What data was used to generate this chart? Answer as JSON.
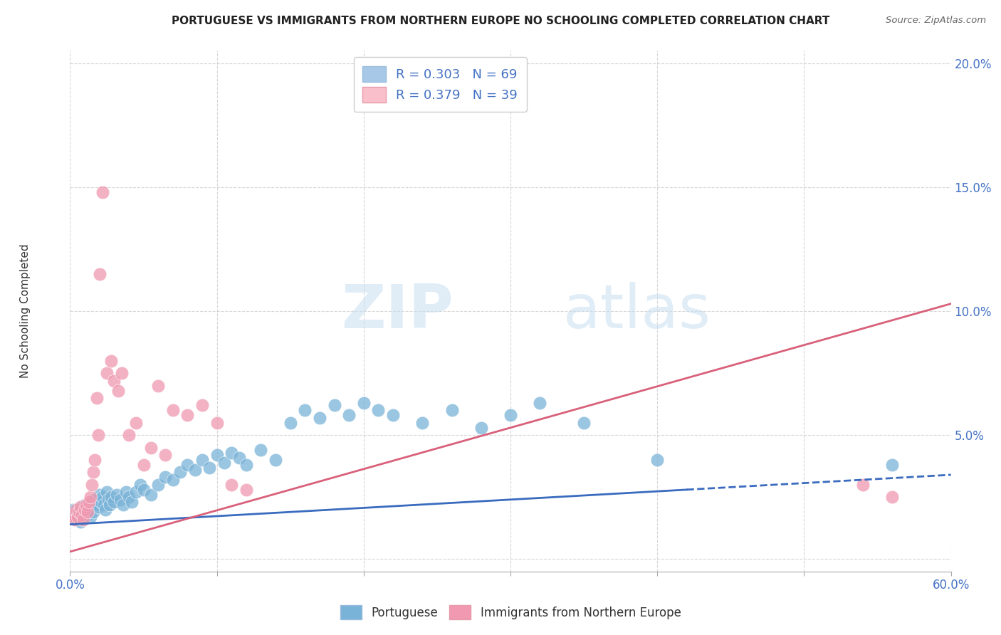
{
  "title": "PORTUGUESE VS IMMIGRANTS FROM NORTHERN EUROPE NO SCHOOLING COMPLETED CORRELATION CHART",
  "source": "Source: ZipAtlas.com",
  "ylabel": "No Schooling Completed",
  "xlim": [
    0.0,
    0.6
  ],
  "ylim": [
    -0.005,
    0.205
  ],
  "yticks": [
    0.0,
    0.05,
    0.1,
    0.15,
    0.2
  ],
  "ytick_labels": [
    "",
    "5.0%",
    "10.0%",
    "15.0%",
    "20.0%"
  ],
  "xtick_positions": [
    0.0,
    0.1,
    0.2,
    0.3,
    0.4,
    0.5,
    0.6
  ],
  "legend_entries": [
    {
      "label": "R = 0.303   N = 69",
      "color": "#a8c8e8"
    },
    {
      "label": "R = 0.379   N = 39",
      "color": "#f9c0cc"
    }
  ],
  "legend_bottom": [
    "Portuguese",
    "Immigrants from Northern Europe"
  ],
  "portuguese_color": "#7ab3d8",
  "immigrants_color": "#f099b0",
  "portuguese_line_color": "#3a6bbf",
  "immigrants_line_color": "#d9607a",
  "portuguese_line_solid_end": 0.42,
  "portuguese_line": [
    [
      0.0,
      0.014
    ],
    [
      0.6,
      0.034
    ]
  ],
  "immigrants_line": [
    [
      0.0,
      0.003
    ],
    [
      0.6,
      0.103
    ]
  ],
  "watermark_zip": "ZIP",
  "watermark_atlas": "atlas",
  "portuguese_scatter": [
    [
      0.002,
      0.02
    ],
    [
      0.003,
      0.018
    ],
    [
      0.004,
      0.016
    ],
    [
      0.005,
      0.019
    ],
    [
      0.006,
      0.017
    ],
    [
      0.007,
      0.015
    ],
    [
      0.008,
      0.021
    ],
    [
      0.009,
      0.019
    ],
    [
      0.01,
      0.022
    ],
    [
      0.011,
      0.02
    ],
    [
      0.012,
      0.018
    ],
    [
      0.013,
      0.021
    ],
    [
      0.014,
      0.017
    ],
    [
      0.015,
      0.023
    ],
    [
      0.016,
      0.019
    ],
    [
      0.017,
      0.024
    ],
    [
      0.018,
      0.022
    ],
    [
      0.019,
      0.021
    ],
    [
      0.02,
      0.026
    ],
    [
      0.021,
      0.023
    ],
    [
      0.022,
      0.025
    ],
    [
      0.023,
      0.022
    ],
    [
      0.024,
      0.02
    ],
    [
      0.025,
      0.027
    ],
    [
      0.026,
      0.024
    ],
    [
      0.027,
      0.022
    ],
    [
      0.028,
      0.025
    ],
    [
      0.03,
      0.023
    ],
    [
      0.032,
      0.026
    ],
    [
      0.034,
      0.024
    ],
    [
      0.036,
      0.022
    ],
    [
      0.038,
      0.027
    ],
    [
      0.04,
      0.025
    ],
    [
      0.042,
      0.023
    ],
    [
      0.045,
      0.027
    ],
    [
      0.048,
      0.03
    ],
    [
      0.05,
      0.028
    ],
    [
      0.055,
      0.026
    ],
    [
      0.06,
      0.03
    ],
    [
      0.065,
      0.033
    ],
    [
      0.07,
      0.032
    ],
    [
      0.075,
      0.035
    ],
    [
      0.08,
      0.038
    ],
    [
      0.085,
      0.036
    ],
    [
      0.09,
      0.04
    ],
    [
      0.095,
      0.037
    ],
    [
      0.1,
      0.042
    ],
    [
      0.105,
      0.039
    ],
    [
      0.11,
      0.043
    ],
    [
      0.115,
      0.041
    ],
    [
      0.12,
      0.038
    ],
    [
      0.13,
      0.044
    ],
    [
      0.14,
      0.04
    ],
    [
      0.15,
      0.055
    ],
    [
      0.16,
      0.06
    ],
    [
      0.17,
      0.057
    ],
    [
      0.18,
      0.062
    ],
    [
      0.19,
      0.058
    ],
    [
      0.2,
      0.063
    ],
    [
      0.21,
      0.06
    ],
    [
      0.22,
      0.058
    ],
    [
      0.24,
      0.055
    ],
    [
      0.26,
      0.06
    ],
    [
      0.28,
      0.053
    ],
    [
      0.3,
      0.058
    ],
    [
      0.32,
      0.063
    ],
    [
      0.35,
      0.055
    ],
    [
      0.4,
      0.04
    ],
    [
      0.56,
      0.038
    ]
  ],
  "immigrants_scatter": [
    [
      0.002,
      0.018
    ],
    [
      0.003,
      0.016
    ],
    [
      0.004,
      0.02
    ],
    [
      0.005,
      0.017
    ],
    [
      0.006,
      0.019
    ],
    [
      0.007,
      0.021
    ],
    [
      0.008,
      0.018
    ],
    [
      0.009,
      0.016
    ],
    [
      0.01,
      0.02
    ],
    [
      0.011,
      0.022
    ],
    [
      0.012,
      0.019
    ],
    [
      0.013,
      0.023
    ],
    [
      0.014,
      0.025
    ],
    [
      0.015,
      0.03
    ],
    [
      0.016,
      0.035
    ],
    [
      0.017,
      0.04
    ],
    [
      0.018,
      0.065
    ],
    [
      0.019,
      0.05
    ],
    [
      0.02,
      0.115
    ],
    [
      0.022,
      0.148
    ],
    [
      0.025,
      0.075
    ],
    [
      0.028,
      0.08
    ],
    [
      0.03,
      0.072
    ],
    [
      0.033,
      0.068
    ],
    [
      0.035,
      0.075
    ],
    [
      0.04,
      0.05
    ],
    [
      0.045,
      0.055
    ],
    [
      0.05,
      0.038
    ],
    [
      0.055,
      0.045
    ],
    [
      0.06,
      0.07
    ],
    [
      0.065,
      0.042
    ],
    [
      0.07,
      0.06
    ],
    [
      0.08,
      0.058
    ],
    [
      0.09,
      0.062
    ],
    [
      0.1,
      0.055
    ],
    [
      0.11,
      0.03
    ],
    [
      0.12,
      0.028
    ],
    [
      0.54,
      0.03
    ],
    [
      0.56,
      0.025
    ]
  ]
}
